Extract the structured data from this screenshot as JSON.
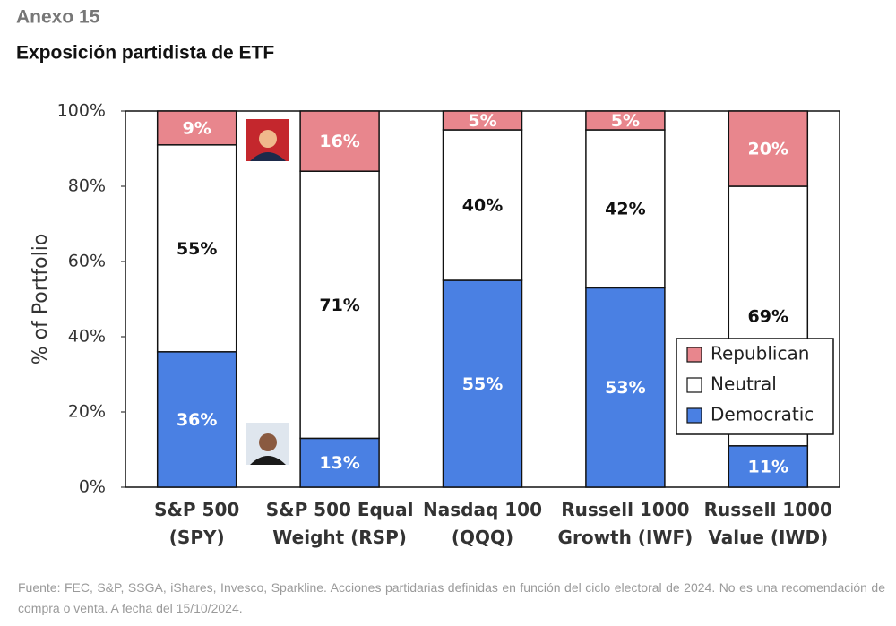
{
  "chart_data": {
    "type": "stacked_bar",
    "kicker": "Anexo 15",
    "title": "Exposición partidista de ETF",
    "y_label": "% of Portfolio",
    "categories": [
      [
        "S&P 500",
        "(SPY)"
      ],
      [
        "S&P 500 Equal",
        "Weight (RSP)"
      ],
      [
        "Nasdaq 100",
        "(QQQ)"
      ],
      [
        "Russell 1000",
        "Growth (IWF)"
      ],
      [
        "Russell 1000",
        "Value (IWD)"
      ]
    ],
    "series": [
      {
        "name": "Democratic",
        "color": "#4a80e3",
        "label_color": "#ffffff",
        "values": [
          36,
          13,
          55,
          53,
          11
        ],
        "value_labels": [
          "36%",
          "13%",
          "55%",
          "53%",
          "11%"
        ]
      },
      {
        "name": "Neutral",
        "color": "#ffffff",
        "label_color": "#111111",
        "values": [
          55,
          71,
          40,
          42,
          69
        ],
        "value_labels": [
          "55%",
          "71%",
          "40%",
          "42%",
          "69%"
        ]
      },
      {
        "name": "Republican",
        "color": "#e8868d",
        "label_color": "#ffffff",
        "values": [
          9,
          16,
          5,
          5,
          20
        ],
        "value_labels": [
          "9%",
          "16%",
          "5%",
          "5%",
          "20%"
        ]
      }
    ],
    "ylim": [
      0,
      100
    ],
    "yticks": [
      {
        "value": 0,
        "label": "0%"
      },
      {
        "value": 20,
        "label": "20%"
      },
      {
        "value": 40,
        "label": "40%"
      },
      {
        "value": 60,
        "label": "60%"
      },
      {
        "value": 80,
        "label": "80%"
      },
      {
        "value": 100,
        "label": "100%"
      }
    ],
    "legend": "lower right",
    "source": "Fuente: FEC, S&P, SSGA, iShares, Invesco, Sparkline. Acciones partidarias definidas en función del ciclo electoral de 2024. No es una recomendación de compra o venta. A fecha del 15/10/2024."
  }
}
